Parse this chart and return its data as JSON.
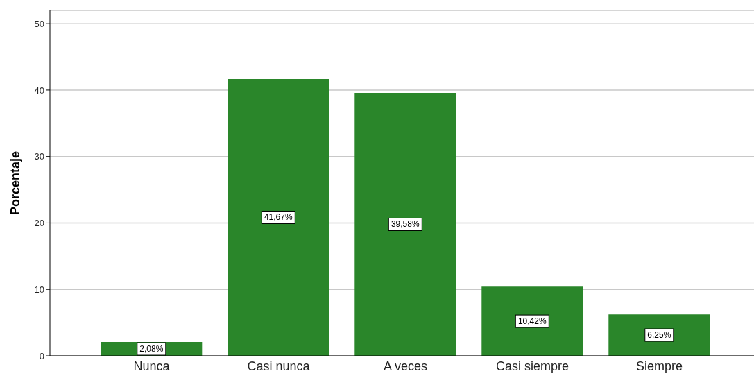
{
  "chart_data": {
    "type": "bar",
    "ylabel": "Porcentaje",
    "categories": [
      "Nunca",
      "Casi nunca",
      "A veces",
      "Casi siempre",
      "Siempre"
    ],
    "values": [
      2.08,
      41.67,
      39.58,
      10.42,
      6.25
    ],
    "value_labels": [
      "2,08%",
      "41,67%",
      "39,58%",
      "10,42%",
      "6,25%"
    ],
    "color": "#2a862a",
    "ylim": [
      0,
      52
    ],
    "yticks": [
      0,
      10,
      20,
      30,
      40,
      50
    ],
    "grid": "y"
  }
}
